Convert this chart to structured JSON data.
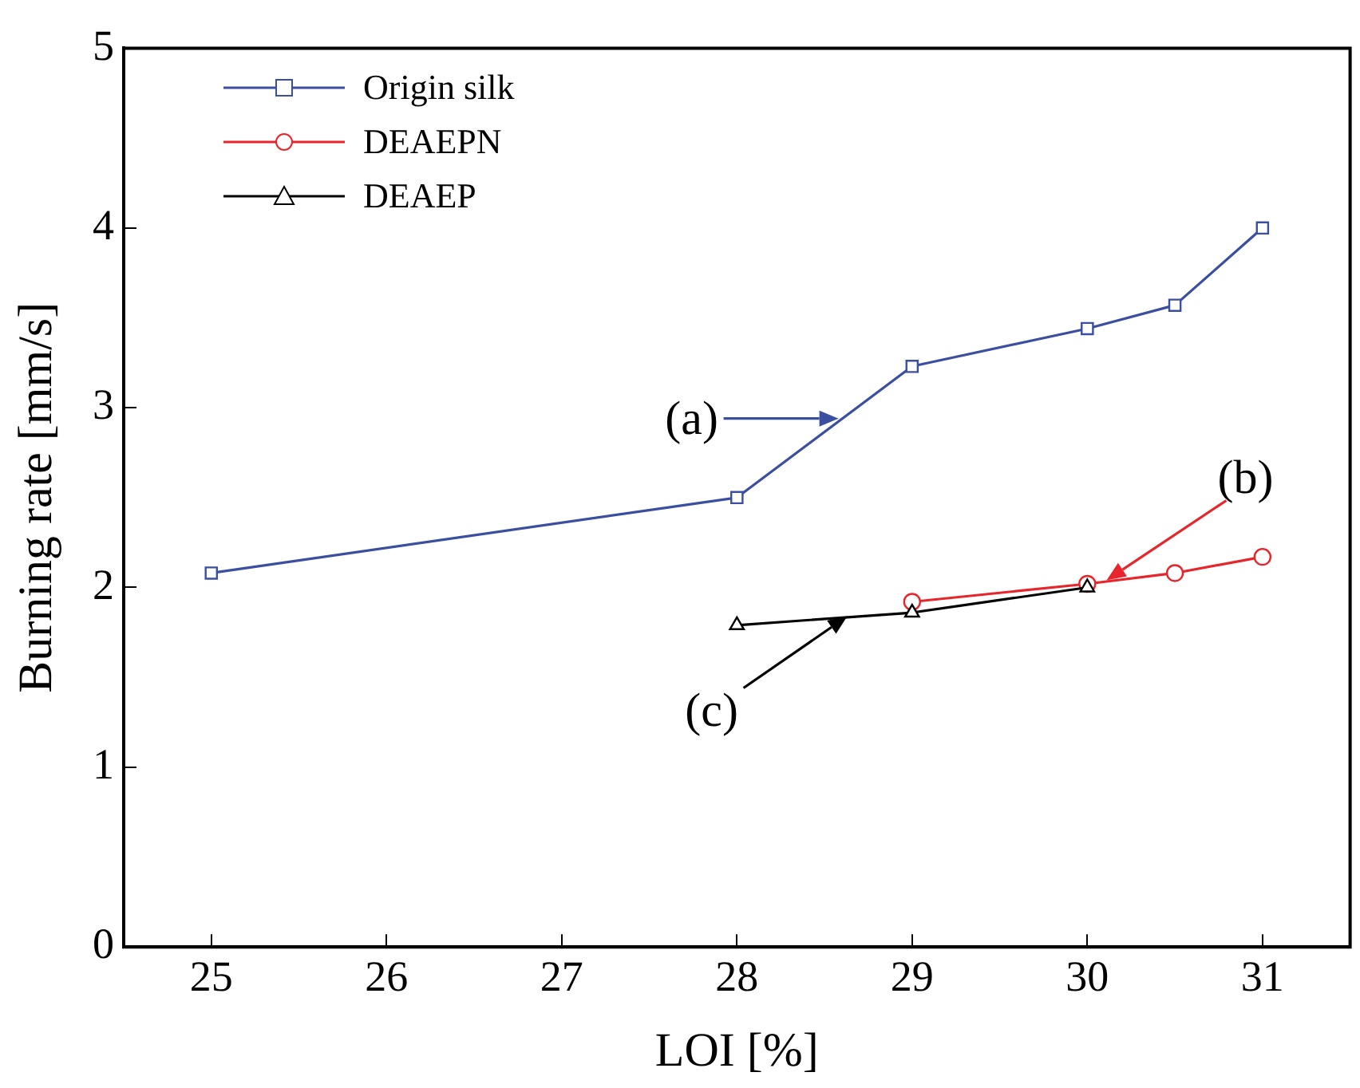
{
  "chart_data": {
    "type": "line",
    "xlabel": "LOI [%]",
    "ylabel": "Burning rate [mm/s]",
    "xlim": [
      24.5,
      31.5
    ],
    "xticks": [
      25,
      26,
      27,
      28,
      29,
      30,
      31
    ],
    "ylim": [
      0,
      5
    ],
    "yticks": [
      0,
      1,
      2,
      3,
      4,
      5
    ],
    "grid": false,
    "legend": "top left",
    "line_style": "solid",
    "series": [
      {
        "name": "Origin silk",
        "color": "#3a4fa0",
        "marker": "square",
        "x": [
          25,
          28,
          29,
          30,
          30.5,
          31
        ],
        "values": [
          2.08,
          2.5,
          3.23,
          3.44,
          3.57,
          4.0
        ]
      },
      {
        "name": "DEAEPN",
        "color": "#e8252a",
        "marker": "circle",
        "x": [
          29,
          30,
          30.5,
          31
        ],
        "values": [
          1.92,
          2.02,
          2.08,
          2.17
        ]
      },
      {
        "name": "DEAEP",
        "color": "#000000",
        "marker": "triangle",
        "x": [
          28,
          29,
          30
        ],
        "values": [
          1.79,
          1.86,
          2.0
        ]
      }
    ],
    "annotations": [
      {
        "text": "(a)",
        "x": 28.58,
        "y": 2.94
      },
      {
        "text": "(b)",
        "x": 30.11,
        "y": 2.04
      },
      {
        "text": "(c)",
        "x": 28.63,
        "y": 1.84
      }
    ]
  }
}
